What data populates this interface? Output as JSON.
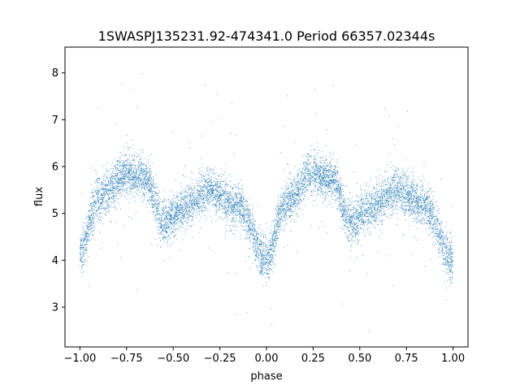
{
  "chart_data": {
    "type": "scatter",
    "title": "1SWASPJ135231.92-474341.0 Period 66357.02344s",
    "xlabel": "phase",
    "ylabel": "flux",
    "xlim": [
      -1.08,
      1.08
    ],
    "ylim": [
      2.15,
      8.55
    ],
    "x_ticks": [
      -1.0,
      -0.75,
      -0.5,
      -0.25,
      0.0,
      0.25,
      0.5,
      0.75,
      1.0
    ],
    "x_tick_labels": [
      "−1.00",
      "−0.75",
      "−0.50",
      "−0.25",
      "0.00",
      "0.25",
      "0.50",
      "0.75",
      "1.00"
    ],
    "y_ticks": [
      3,
      4,
      5,
      6,
      7,
      8
    ],
    "y_tick_labels": [
      "3",
      "4",
      "5",
      "6",
      "7",
      "8"
    ],
    "grid": false,
    "legend": "none",
    "marker_color": "#1f77b4",
    "series": [
      {
        "description_points": "phase-folded light curve; mean flux trend over one cycle (repeated at phase ±1)",
        "points": [
          {
            "x": -1.0,
            "y": 4.2
          },
          {
            "x": -0.9,
            "y": 5.3
          },
          {
            "x": -0.75,
            "y": 5.85
          },
          {
            "x": -0.65,
            "y": 5.75
          },
          {
            "x": -0.55,
            "y": 4.8
          },
          {
            "x": -0.45,
            "y": 5.1
          },
          {
            "x": -0.3,
            "y": 5.5
          },
          {
            "x": -0.15,
            "y": 5.15
          },
          {
            "x": 0.0,
            "y": 4.0
          },
          {
            "x": 0.1,
            "y": 5.2
          },
          {
            "x": 0.25,
            "y": 5.85
          },
          {
            "x": 0.35,
            "y": 5.75
          },
          {
            "x": 0.45,
            "y": 4.8
          },
          {
            "x": 0.55,
            "y": 5.1
          },
          {
            "x": 0.7,
            "y": 5.5
          },
          {
            "x": 0.85,
            "y": 5.15
          },
          {
            "x": 1.0,
            "y": 4.0
          }
        ]
      }
    ]
  }
}
